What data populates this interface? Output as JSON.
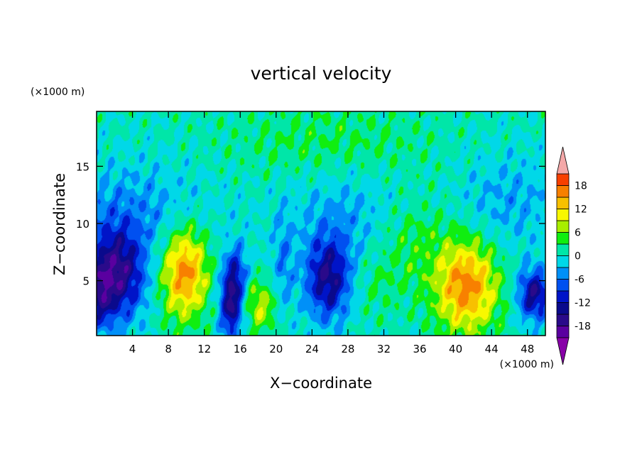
{
  "chart_data": {
    "type": "heatmap",
    "title": "vertical velocity",
    "xlabel": "X−coordinate",
    "ylabel": "Z−coordinate",
    "x_unit": "(×1000 m)",
    "y_unit": "(×1000 m)",
    "xlim": [
      0,
      50
    ],
    "ylim": [
      0.2,
      19.8
    ],
    "x_ticks": [
      4,
      8,
      12,
      16,
      20,
      24,
      28,
      32,
      36,
      40,
      44,
      48
    ],
    "y_ticks": [
      5,
      10,
      15
    ],
    "colorbar": {
      "levels": [
        -21,
        -18,
        -15,
        -12,
        -9,
        -6,
        -3,
        0,
        3,
        6,
        9,
        12,
        15,
        18,
        21
      ],
      "labels": [
        18,
        12,
        6,
        0,
        -6,
        -12,
        -18
      ],
      "colors": [
        "#5a00a0",
        "#2a0a8a",
        "#0a0a8c",
        "#0014c8",
        "#0050f0",
        "#0090f8",
        "#00d8e8",
        "#00e6a8",
        "#10ee10",
        "#a8ee00",
        "#f8f800",
        "#f8c000",
        "#f88000",
        "#f84000",
        "#e80000"
      ],
      "extend_low_color": "#8800a8",
      "extend_high_color": "#f4a8a8"
    },
    "features": [
      {
        "x": 2.2,
        "z": 5.5,
        "amp": -17,
        "sx": 2.2,
        "sz": 2.8
      },
      {
        "x": 0.3,
        "z": 3.5,
        "amp": -8,
        "sx": 1.0,
        "sz": 2.0
      },
      {
        "x": 9.8,
        "z": 5.8,
        "amp": 16,
        "sx": 1.8,
        "sz": 2.8
      },
      {
        "x": 15.0,
        "z": 3.0,
        "amp": -16,
        "sx": 0.9,
        "sz": 2.2
      },
      {
        "x": 15.6,
        "z": 6.0,
        "amp": -7,
        "sx": 0.9,
        "sz": 1.6
      },
      {
        "x": 18.2,
        "z": 2.8,
        "amp": 8,
        "sx": 1.2,
        "sz": 1.6
      },
      {
        "x": 20.8,
        "z": 6.5,
        "amp": -5,
        "sx": 0.8,
        "sz": 3.0
      },
      {
        "x": 25.8,
        "z": 5.2,
        "amp": -15,
        "sx": 1.8,
        "sz": 2.6
      },
      {
        "x": 31.0,
        "z": 4.5,
        "amp": 2,
        "sx": 2.0,
        "sz": 2.0
      },
      {
        "x": 35.0,
        "z": 8.5,
        "amp": 4,
        "sx": 3.0,
        "sz": 3.0
      },
      {
        "x": 41.2,
        "z": 4.5,
        "amp": 16,
        "sx": 2.4,
        "sz": 2.8
      },
      {
        "x": 48.8,
        "z": 3.8,
        "amp": -15,
        "sx": 1.3,
        "sz": 1.6
      },
      {
        "x": 4.0,
        "z": 11.0,
        "amp": -5,
        "sx": 6.0,
        "sz": 3.0
      },
      {
        "x": 28.0,
        "z": 11.0,
        "amp": -4,
        "sx": 5.0,
        "sz": 3.0
      },
      {
        "x": 46.0,
        "z": 12.0,
        "amp": -4,
        "sx": 4.0,
        "sz": 3.0
      },
      {
        "x": 26.0,
        "z": 17.0,
        "amp": 3,
        "sx": 8.0,
        "sz": 2.5
      }
    ]
  }
}
